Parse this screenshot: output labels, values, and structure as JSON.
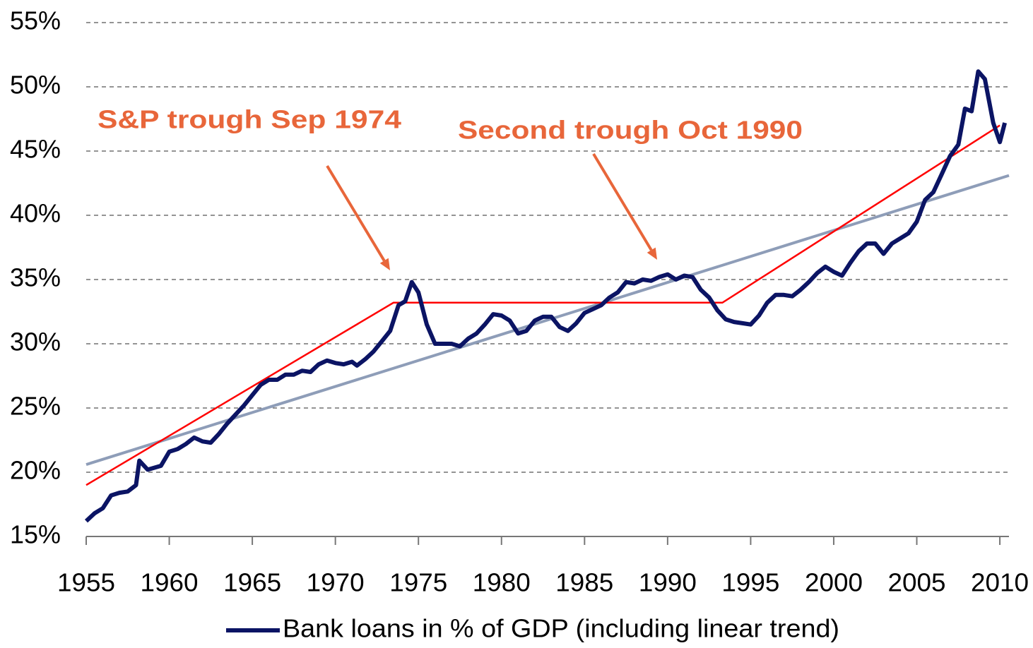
{
  "chart_data": {
    "type": "line",
    "legend": "bottom",
    "grid": true,
    "xlim": [
      1955,
      2010.55
    ],
    "ylim": [
      15,
      55
    ],
    "xticks": [
      1955,
      1960,
      1965,
      1970,
      1975,
      1980,
      1985,
      1990,
      1995,
      2000,
      2005,
      2010
    ],
    "yticks": [
      {
        "value": 15,
        "label": "15%"
      },
      {
        "value": 20,
        "label": "20%"
      },
      {
        "value": 25,
        "label": "25%"
      },
      {
        "value": 30,
        "label": "30%"
      },
      {
        "value": 35,
        "label": "35%"
      },
      {
        "value": 40,
        "label": "40%"
      },
      {
        "value": 45,
        "label": "45%"
      },
      {
        "value": 50,
        "label": "50%"
      },
      {
        "value": 55,
        "label": "55%"
      }
    ],
    "annotations": [
      {
        "text": "S&P trough Sep 1974",
        "color": "#e8663a"
      },
      {
        "text": "Second trough Oct 1990",
        "color": "#e8663a"
      }
    ],
    "series": [
      {
        "name": "Bank loans in % of GDP (including linear trend)",
        "color": "#0b1464",
        "x": [
          1955,
          1955.5,
          1956,
          1956.5,
          1957,
          1957.5,
          1958,
          1958.2,
          1958.7,
          1959.5,
          1960,
          1960.5,
          1961,
          1961.5,
          1962,
          1962.5,
          1963,
          1963.5,
          1964,
          1964.5,
          1965,
          1965.5,
          1966,
          1966.5,
          1967,
          1967.5,
          1968,
          1968.5,
          1969,
          1969.5,
          1970,
          1970.5,
          1971,
          1971.3,
          1971.8,
          1972.3,
          1972.8,
          1973.3,
          1973.8,
          1974.2,
          1974.6,
          1975,
          1975.5,
          1976,
          1976.5,
          1977,
          1977.5,
          1978,
          1978.5,
          1979,
          1979.5,
          1980,
          1980.5,
          1981,
          1981.5,
          1982,
          1982.5,
          1983,
          1983.5,
          1984,
          1984.5,
          1985,
          1985.5,
          1986,
          1986.5,
          1987,
          1987.5,
          1988,
          1988.5,
          1989,
          1989.5,
          1990,
          1990.5,
          1991,
          1991.5,
          1992,
          1992.5,
          1993,
          1993.5,
          1994,
          1994.5,
          1995,
          1995.5,
          1996,
          1996.5,
          1997,
          1997.5,
          1998,
          1998.5,
          1999,
          1999.5,
          2000,
          2000.5,
          2001,
          2001.5,
          2002,
          2002.5,
          2003,
          2003.5,
          2004,
          2004.5,
          2005,
          2005.5,
          2006,
          2006.5,
          2007,
          2007.5,
          2007.9,
          2008.3,
          2008.7,
          2009.1,
          2009.6,
          2010,
          2010.3
        ],
        "values": [
          16.2,
          16.8,
          17.2,
          18.2,
          18.4,
          18.5,
          19.0,
          20.9,
          20.2,
          20.5,
          21.6,
          21.8,
          22.2,
          22.7,
          22.4,
          22.3,
          23.0,
          23.8,
          24.5,
          25.2,
          26.0,
          26.8,
          27.2,
          27.2,
          27.6,
          27.6,
          27.9,
          27.8,
          28.4,
          28.7,
          28.5,
          28.4,
          28.6,
          28.3,
          28.8,
          29.4,
          30.2,
          31.0,
          33.0,
          33.3,
          34.8,
          34.0,
          31.5,
          30.0,
          30.0,
          30.0,
          29.8,
          30.4,
          30.8,
          31.5,
          32.3,
          32.2,
          31.8,
          30.8,
          31.0,
          31.8,
          32.1,
          32.1,
          31.3,
          31.0,
          31.6,
          32.4,
          32.7,
          33.0,
          33.6,
          34.0,
          34.8,
          34.7,
          35.0,
          34.9,
          35.2,
          35.4,
          35.0,
          35.3,
          35.2,
          34.2,
          33.6,
          32.6,
          31.9,
          31.7,
          31.6,
          31.5,
          32.2,
          33.2,
          33.8,
          33.8,
          33.7,
          34.2,
          34.8,
          35.5,
          36.0,
          35.6,
          35.3,
          36.3,
          37.2,
          37.8,
          37.8,
          37.0,
          37.8,
          38.2,
          38.6,
          39.5,
          41.2,
          41.8,
          43.2,
          44.6,
          45.5,
          48.3,
          48.1,
          51.2,
          50.6,
          47.2,
          45.7,
          47.2
        ]
      }
    ],
    "trend_lines": [
      {
        "color": "#8e9db8",
        "x": [
          1955,
          2010.55
        ],
        "values": [
          20.6,
          43.1
        ]
      },
      {
        "color": "#ff0000",
        "x": [
          1955,
          1973.5,
          1993.3,
          2010
        ],
        "values": [
          19.0,
          33.2,
          33.2,
          47.0
        ]
      }
    ]
  }
}
